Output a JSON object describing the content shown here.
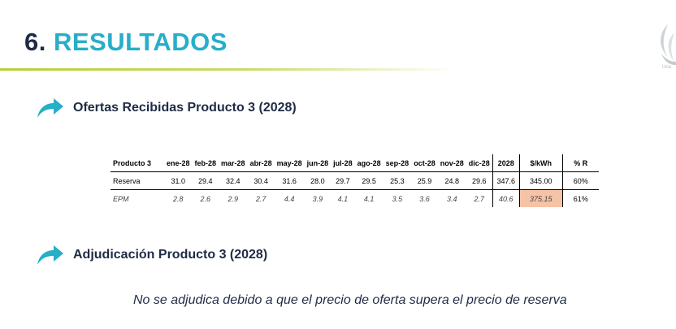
{
  "slide": {
    "number": "6.",
    "title": "RESULTADOS"
  },
  "colors": {
    "accent": "#27aec9",
    "dark": "#1f2b45",
    "title_underline": "#b7cf3a",
    "highlight_cell": "#f6c3a6"
  },
  "sections": [
    {
      "heading": "Ofertas Recibidas Producto 3 (2028)",
      "icon": "curved-arrow-icon"
    },
    {
      "heading": "Adjudicación Producto 3 (2028)",
      "icon": "curved-arrow-icon"
    }
  ],
  "table": {
    "headers": [
      "Producto 3",
      "ene-28",
      "feb-28",
      "mar-28",
      "abr-28",
      "may-28",
      "jun-28",
      "jul-28",
      "ago-28",
      "sep-28",
      "oct-28",
      "nov-28",
      "dic-28",
      "2028",
      "$/kWh",
      "% R"
    ],
    "rows": [
      {
        "label": "Reserva",
        "values": [
          "31.0",
          "29.4",
          "32.4",
          "30.4",
          "31.6",
          "28.0",
          "29.7",
          "29.5",
          "25.3",
          "25.9",
          "24.8",
          "29.6"
        ],
        "total": "347.6",
        "price": "345.00",
        "pct": "60%"
      },
      {
        "label": "EPM",
        "values": [
          "2.8",
          "2.6",
          "2.9",
          "2.7",
          "4.4",
          "3.9",
          "4.1",
          "4.1",
          "3.5",
          "3.6",
          "3.4",
          "2.7"
        ],
        "total": "40.6",
        "price": "375.15",
        "pct": "61%"
      }
    ]
  },
  "note": "No se adjudica debido a que el precio de oferta supera el precio de reserva"
}
